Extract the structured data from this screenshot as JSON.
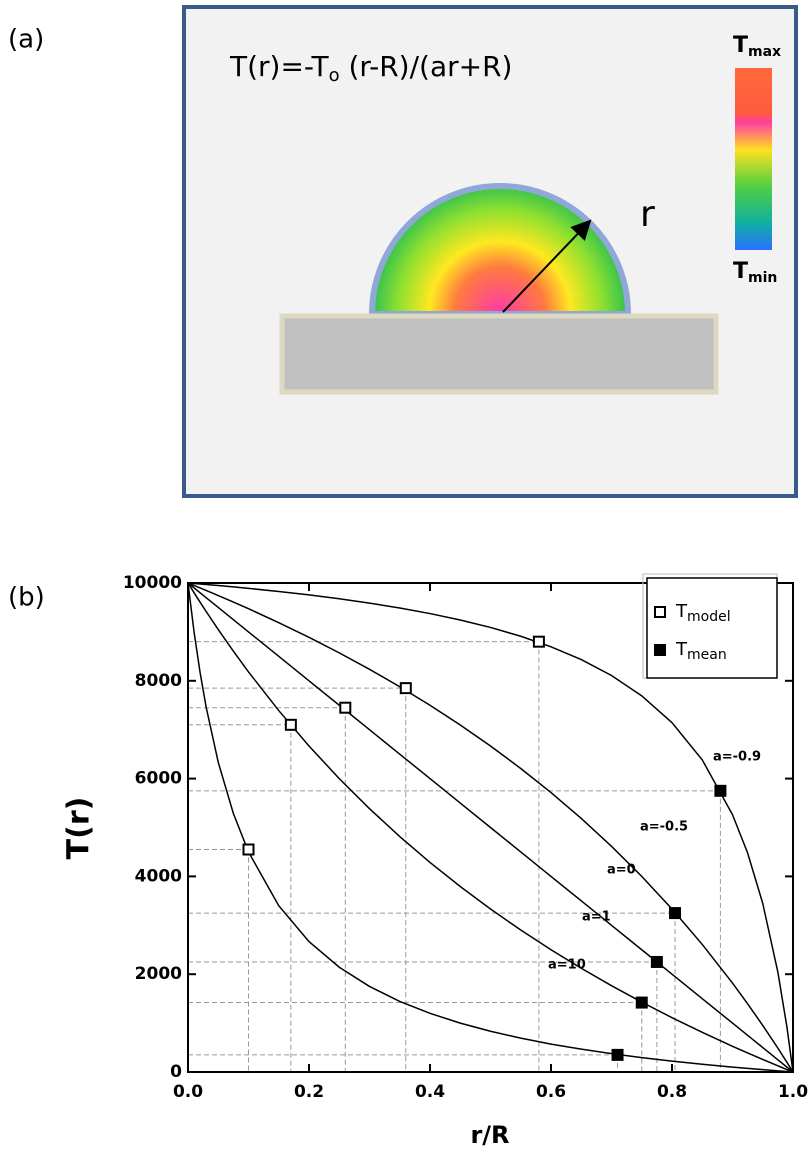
{
  "panel_a": {
    "label": "(a)",
    "formula": [
      "T(r)=-T",
      "o",
      " (r-R)/(ar+R)"
    ],
    "colorbar_max": [
      "T",
      "max"
    ],
    "colorbar_min": [
      "T",
      "min"
    ],
    "radius_label": "r"
  },
  "panel_b_label": "(b)",
  "chart_data": {
    "type": "line",
    "x_label": "r/R",
    "y_label": "T(r)",
    "x": [
      0,
      0.01,
      0.02,
      0.03,
      0.05,
      0.075,
      0.1,
      0.15,
      0.2,
      0.25,
      0.3,
      0.35,
      0.4,
      0.45,
      0.5,
      0.55,
      0.6,
      0.65,
      0.7,
      0.75,
      0.8,
      0.85,
      0.9,
      0.925,
      0.95,
      0.975,
      0.99,
      1
    ],
    "series": [
      {
        "name": "a=-0.9",
        "color": "#000000",
        "values": [
          10000,
          9990,
          9980,
          9969,
          9948,
          9920,
          9890,
          9827,
          9756,
          9677,
          9589,
          9489,
          9375,
          9244,
          9091,
          8911,
          8696,
          8434,
          8108,
          7692,
          7143,
          6383,
          5263,
          4478,
          3448,
          2041,
          917,
          0
        ]
      },
      {
        "name": "a=-0.5",
        "color": "#000000",
        "values": [
          10000,
          9950,
          9899,
          9848,
          9744,
          9610,
          9474,
          9189,
          8889,
          8571,
          8235,
          7879,
          7500,
          7097,
          6667,
          6207,
          5714,
          5185,
          4615,
          4000,
          3333,
          2609,
          1818,
          1395,
          952,
          488,
          198,
          0
        ]
      },
      {
        "name": "a=0",
        "color": "#000000",
        "values": [
          10000,
          9900,
          9800,
          9700,
          9500,
          9250,
          9000,
          8500,
          8000,
          7500,
          7000,
          6500,
          6000,
          5500,
          5000,
          4500,
          4000,
          3500,
          3000,
          2500,
          2000,
          1500,
          1000,
          750,
          500,
          250,
          100,
          0
        ]
      },
      {
        "name": "a=1",
        "color": "#000000",
        "values": [
          10000,
          9802,
          9608,
          9417,
          9048,
          8605,
          8182,
          7391,
          6667,
          6000,
          5385,
          4815,
          4286,
          3793,
          3333,
          2903,
          2500,
          2121,
          1765,
          1429,
          1111,
          811,
          526,
          390,
          256,
          127,
          50,
          0
        ]
      },
      {
        "name": "a=10",
        "color": "#000000",
        "values": [
          10000,
          9000,
          8167,
          7462,
          6333,
          5286,
          4500,
          3400,
          2667,
          2143,
          1750,
          1444,
          1200,
          1000,
          833,
          692,
          571,
          467,
          375,
          294,
          222,
          158,
          100,
          73,
          48,
          23,
          9,
          0
        ]
      }
    ],
    "scatter_series": [
      {
        "name": "T",
        "name_sub": "model",
        "filled": false,
        "x": [
          0.1,
          0.17,
          0.26,
          0.36,
          0.58
        ],
        "values": [
          4550,
          7100,
          7450,
          7850,
          8800
        ]
      },
      {
        "name": "T",
        "name_sub": "mean",
        "filled": true,
        "x": [
          0.71,
          0.75,
          0.775,
          0.805,
          0.88
        ],
        "values": [
          350,
          1420,
          2250,
          3250,
          5750
        ]
      }
    ],
    "xlim": [
      0,
      1
    ],
    "ylim": [
      0,
      10000
    ],
    "xticks": [
      {
        "value": 0,
        "label": "0.0"
      },
      {
        "value": 0.2,
        "label": "0.2"
      },
      {
        "value": 0.4,
        "label": "0.4"
      },
      {
        "value": 0.6,
        "label": "0.6"
      },
      {
        "value": 0.8,
        "label": "0.8"
      },
      {
        "value": 1,
        "label": "1.0"
      }
    ],
    "yticks": [
      0,
      2000,
      4000,
      6000,
      8000,
      10000
    ],
    "legend": "upper right",
    "grid": false
  }
}
